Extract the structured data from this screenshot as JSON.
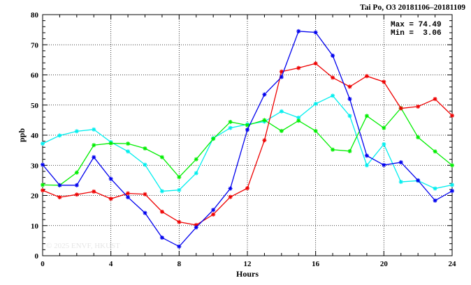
{
  "chart_data": {
    "type": "line",
    "title": "Tai Po, O3 20181106–20181109",
    "xlabel": "Hours",
    "ylabel": "ppb",
    "xlim": [
      0,
      24
    ],
    "ylim": [
      0,
      80
    ],
    "xticks": [
      "0",
      "4",
      "8",
      "12",
      "16",
      "20",
      "24"
    ],
    "yticks": [
      "0",
      "10",
      "20",
      "30",
      "40",
      "50",
      "60",
      "70",
      "80"
    ],
    "grid": true,
    "stats": {
      "max_label": "Max = 74.49",
      "min_label": "Min =  3.06"
    },
    "watermark": "© 2025  ENVF, HKUST",
    "x": [
      0,
      1,
      2,
      3,
      4,
      5,
      6,
      7,
      8,
      9,
      10,
      11,
      12,
      13,
      14,
      15,
      16,
      17,
      18,
      19,
      20,
      21,
      22,
      23,
      24
    ],
    "series": [
      {
        "color": "#0000ee",
        "values": [
          30.2,
          23.4,
          23.4,
          32.7,
          25.5,
          19.4,
          14.2,
          6.0,
          3.06,
          9.4,
          15.2,
          22.3,
          41.8,
          53.5,
          59.3,
          74.49,
          74.1,
          66.4,
          52.0,
          33.2,
          30.1,
          31.0,
          25.0,
          18.3,
          21.5
        ]
      },
      {
        "color": "#ee0000",
        "values": [
          21.7,
          19.4,
          20.3,
          21.3,
          18.9,
          20.7,
          20.4,
          14.6,
          11.2,
          10.2,
          13.7,
          19.5,
          22.4,
          38.3,
          61.1,
          62.3,
          63.8,
          59.1,
          56.1,
          59.6,
          57.7,
          48.9,
          49.5,
          52.0,
          46.5
        ]
      },
      {
        "color": "#00ee00",
        "values": [
          23.5,
          23.4,
          27.6,
          36.7,
          37.3,
          37.2,
          35.6,
          32.7,
          26.1,
          32.0,
          38.8,
          44.4,
          43.3,
          45.0,
          41.4,
          44.8,
          41.4,
          35.2,
          34.7,
          46.4,
          42.4,
          49.0,
          39.3,
          34.6,
          30.0
        ]
      },
      {
        "color": "#00eeee",
        "values": [
          37.2,
          39.9,
          41.3,
          41.9,
          37.7,
          34.6,
          30.2,
          21.4,
          21.8,
          27.4,
          39.0,
          42.4,
          43.6,
          44.5,
          47.9,
          45.8,
          50.4,
          53.1,
          46.4,
          30.0,
          37.0,
          24.5,
          24.9,
          22.3,
          23.5
        ]
      }
    ]
  }
}
